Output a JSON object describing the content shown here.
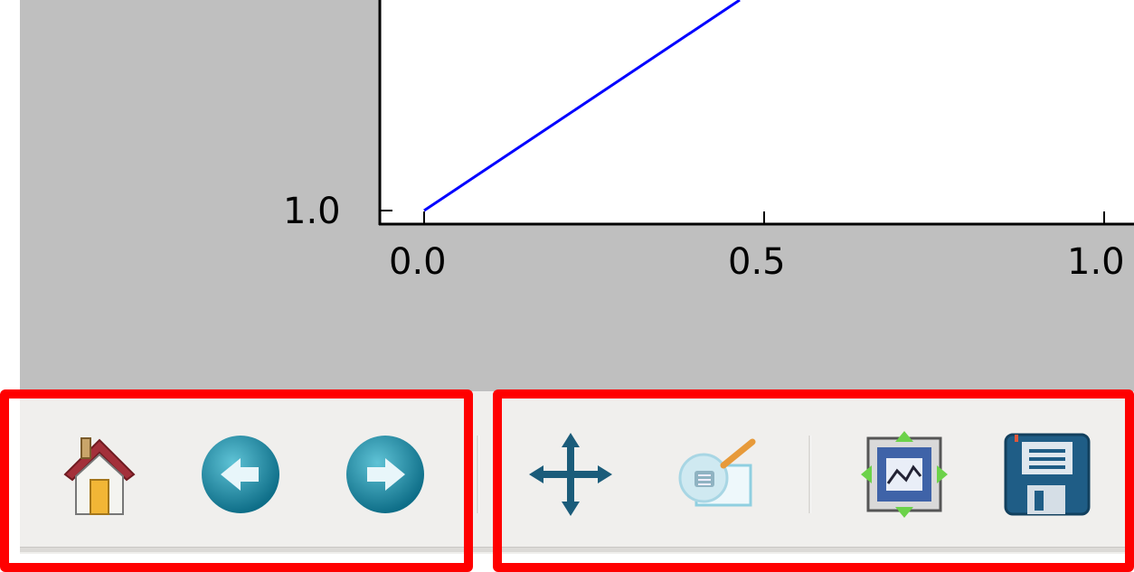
{
  "plot": {
    "x_ticks": [
      "0.0",
      "0.5",
      "1.0"
    ],
    "y_ticks": [
      "1.0"
    ],
    "line_color": "#0000ff",
    "canvas_color": "#bfbfbf"
  },
  "toolbar": {
    "buttons": [
      {
        "icon": "home-icon"
      },
      {
        "icon": "back-arrow-icon"
      },
      {
        "icon": "forward-arrow-icon"
      },
      {
        "icon": "pan-move-icon"
      },
      {
        "icon": "zoom-to-rect-icon"
      },
      {
        "icon": "configure-subplots-icon"
      },
      {
        "icon": "save-floppy-icon"
      }
    ]
  },
  "annotation": {
    "highlight_color": "#ff0000"
  }
}
